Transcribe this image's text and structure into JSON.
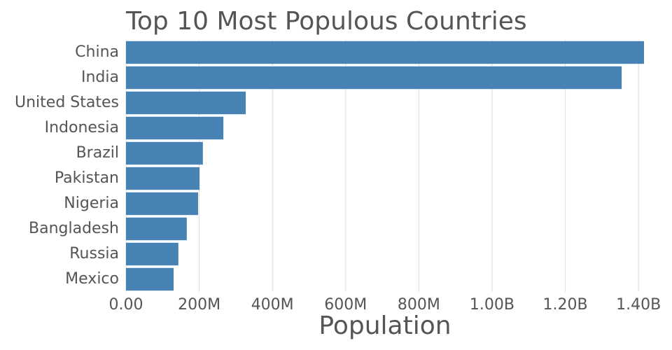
{
  "chart_data": {
    "type": "hbar",
    "title": "Top 10 Most Populous Countries",
    "x_label": "Population",
    "categories": [
      "China",
      "India",
      "United States",
      "Indonesia",
      "Brazil",
      "Pakistan",
      "Nigeria",
      "Bangladesh",
      "Russia",
      "Mexico"
    ],
    "values": [
      1415000000,
      1354000000,
      327000000,
      266000000,
      210000000,
      201000000,
      197000000,
      166000000,
      143000000,
      130000000
    ],
    "color": "#4682b4",
    "xlim": [
      0,
      1415000000
    ],
    "xticks": [
      {
        "value": 0,
        "label": "0.00"
      },
      {
        "value": 200000000,
        "label": "200M"
      },
      {
        "value": 400000000,
        "label": "400M"
      },
      {
        "value": 600000000,
        "label": "600M"
      },
      {
        "value": 800000000,
        "label": "800M"
      },
      {
        "value": 1000000000,
        "label": "1.00B"
      },
      {
        "value": 1200000000,
        "label": "1.20B"
      },
      {
        "value": 1400000000,
        "label": "1.40B"
      }
    ],
    "grid": true
  }
}
